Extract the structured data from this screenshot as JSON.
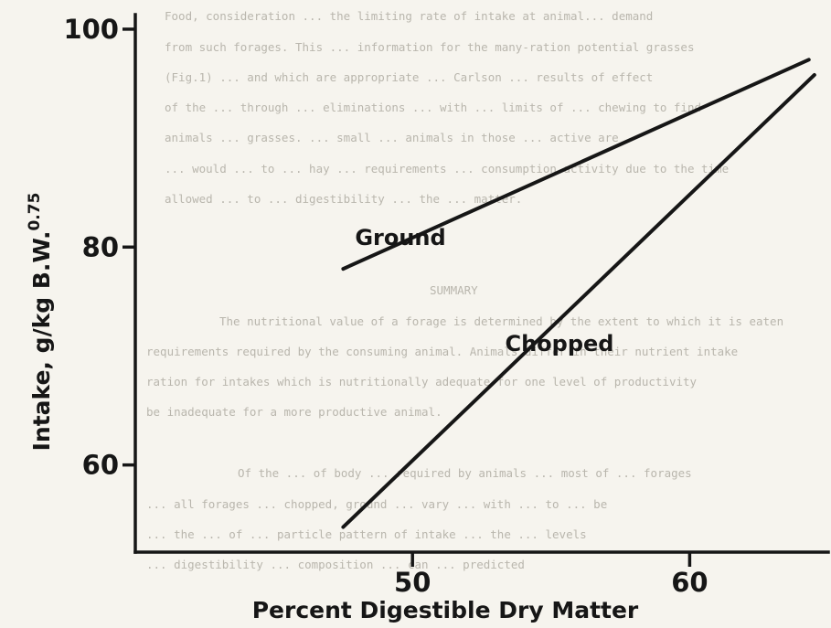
{
  "background_text": [
    "Food, consideration ... the limiting rate of intake at animal... demand",
    "from such forages. This ... information for the many-ration potential grasses",
    "(Fig.1) ... and which are appropriate ... Carlson ... results of effect",
    "of the ... through ... eliminations ... with ... limits of ... chewing to find",
    "animals ... grasses. ... small ... animals in those ... active are",
    "... would ... to ... hay ... requirements ... consumption activity due to the time",
    "allowed ... to ... digestibility ... the ... matter.",
    "SUMMARY",
    "The nutritional value of a forage is determined by the extent to which it is eaten",
    "requirements required by the consuming animal. Animals differ in their nutrient intake",
    "ration for intakes which is nutritionally adequate for one level of productivity",
    "be inadequate for a more productive animal.",
    "Of the ... of body ... required by animals ... most of ... forages",
    "... all forages ... chopped, ground ... vary ... with ... to ... be",
    "... the ... of ... particle pattern of intake ... the ... levels",
    "... digestibility ... composition ... can ... predicted"
  ],
  "chart_data": {
    "type": "line",
    "title": "",
    "xlabel": "Percent Digestible Dry Matter",
    "ylabel": "Intake, g/kg B.W.",
    "ylabel_superscript": "0.75",
    "xlim": [
      40,
      65
    ],
    "ylim": [
      52,
      101
    ],
    "x_ticks": [
      50,
      60
    ],
    "x_tick_labels": [
      "50",
      "60"
    ],
    "y_ticks": [
      60,
      80,
      100
    ],
    "y_tick_labels": [
      "60",
      "80",
      "100"
    ],
    "grid": false,
    "legend": "none",
    "series": [
      {
        "name": "Ground",
        "x": [
          47.5,
          64.3
        ],
        "y": [
          78.0,
          97.2
        ]
      },
      {
        "name": "Chopped",
        "x": [
          47.5,
          64.5
        ],
        "y": [
          54.3,
          95.8
        ]
      }
    ]
  }
}
